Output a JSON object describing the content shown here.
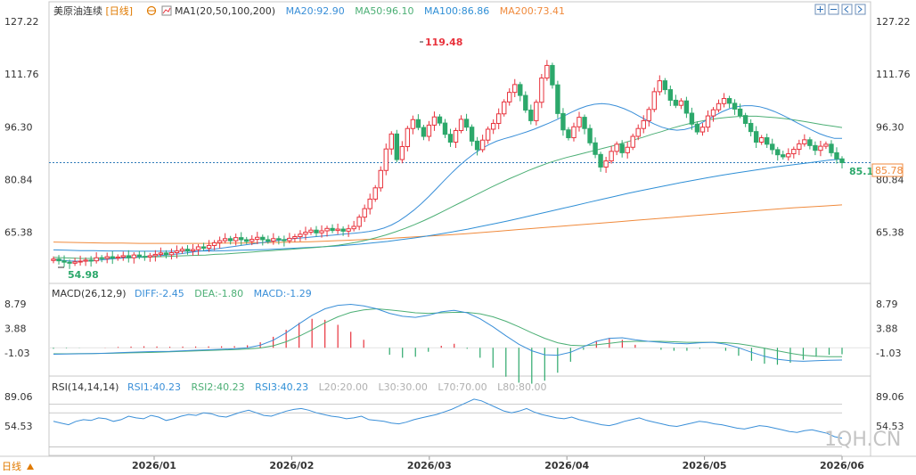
{
  "header": {
    "instrument": "美原油连续",
    "period": "[日线]",
    "ma_title": "MA1(20,50,100,200)",
    "ma20": "MA20:92.90",
    "ma50": "MA50:96.10",
    "ma100": "MA100:86.86",
    "ma200": "MA200:73.41"
  },
  "macd_header": {
    "title": "MACD(26,12,9)",
    "diff": "DIFF:-2.45",
    "dea": "DEA:-1.80",
    "macd": "MACD:-1.29"
  },
  "rsi_header": {
    "title": "RSI(14,14,14)",
    "rsi1": "RSI1:40.23",
    "rsi2": "RSI2:40.23",
    "rsi3": "RSI3:40.23",
    "l20": "L20:20.00",
    "l30": "L30:30.00",
    "l70": "L70:70.00",
    "l80": "L80:80.00"
  },
  "footer": {
    "period_button": "日线",
    "watermark": "1QH.CN"
  },
  "icons": [
    "lock-icon",
    "zoom-in-icon",
    "zoom-out-icon",
    "scroll-left-icon",
    "scroll-right-icon"
  ],
  "colors": {
    "up": "#e8323c",
    "down": "#2ca86b",
    "ma20": "#3a8fd8",
    "ma50": "#4caf75",
    "ma100": "#2f8fd6",
    "ma200": "#f08a3c",
    "diff": "#3a8fd8",
    "dea": "#4caf75",
    "rsi": "#3a8fd8",
    "price_line": "#2e7ab8"
  },
  "chart_data": {
    "type": "candlestick",
    "x_labels": [
      "2026/01",
      "2026/02",
      "2026/03",
      "2026/04",
      "2026/05",
      "2026/06"
    ],
    "price_axis": {
      "ticks": [
        "127.22",
        "111.76",
        "96.30",
        "80.84",
        "65.38"
      ],
      "ylim": [
        50,
        130
      ]
    },
    "macd_axis": {
      "ticks": [
        "8.79",
        "3.88",
        "-1.03"
      ]
    },
    "rsi_axis": {
      "ticks": [
        "89.06",
        "54.53"
      ]
    },
    "annotations": {
      "high": "119.48",
      "low": "54.98",
      "last": "85.1",
      "current": "85.78"
    },
    "grid": false,
    "closes": [
      57.5,
      57,
      56.6,
      56.3,
      56.7,
      56.9,
      57.2,
      57,
      57.9,
      57.7,
      58.2,
      57.8,
      58.1,
      58.5,
      57.9,
      58.7,
      58.3,
      58.1,
      58.5,
      58.9,
      59.3,
      58.8,
      59.4,
      59.9,
      60.4,
      59.9,
      60.3,
      61.1,
      60.7,
      61.5,
      62.3,
      62.9,
      63.5,
      62.9,
      63.8,
      63.2,
      62.7,
      63.3,
      63.9,
      63.2,
      62.8,
      63.5,
      63.2,
      62.9,
      63.6,
      64.1,
      64.8,
      65.4,
      66,
      65.2,
      65.8,
      66.5,
      65.9,
      66.3,
      65.7,
      66.4,
      67.1,
      69.8,
      72.3,
      75.1,
      78.4,
      83.5,
      89.8,
      94.2,
      86.7,
      90.5,
      95.8,
      98.4,
      96.1,
      93.5,
      96.8,
      99.2,
      97.4,
      94.1,
      91.8,
      95.2,
      98.5,
      96.2,
      92.1,
      89.6,
      92.4,
      95.6,
      97.3,
      100.1,
      103.6,
      106.4,
      108.7,
      105.5,
      101.2,
      98.1,
      103.5,
      110.6,
      114.3,
      108.6,
      100.2,
      95.4,
      93.1,
      96.3,
      99.1,
      95.8,
      91.6,
      88.2,
      84.5,
      86.3,
      89.1,
      91.2,
      88.7,
      90.3,
      93.5,
      95.8,
      98.1,
      101.4,
      106.6,
      109.8,
      107.2,
      104.1,
      102.6,
      103.9,
      100.3,
      97.1,
      94.8,
      96.2,
      99.5,
      101.3,
      103.1,
      104.6,
      103.2,
      101.5,
      99.6,
      97.3,
      94.9,
      91.8,
      93.1,
      91.2,
      89.6,
      88.1,
      87.5,
      88.4,
      89.7,
      91.3,
      92.5,
      90.8,
      89.4,
      90.6,
      91.2,
      88.7,
      86.9,
      85.78
    ],
    "series": [
      {
        "name": "MA20",
        "values": [
          57.4,
          57.2,
          57,
          56.9,
          56.9,
          57,
          57.2,
          57.4,
          57.6,
          57.8,
          58,
          58.1,
          58.2,
          58.4,
          58.5,
          58.7,
          58.9,
          59.1,
          59.4,
          59.7,
          60,
          60.3,
          60.6,
          60.9,
          61.2,
          61.5,
          61.8,
          62.1,
          62.4,
          62.7,
          63,
          63.3,
          63.5,
          63.7,
          63.9,
          64.1,
          64.3,
          64.5,
          64.7,
          64.9,
          65.1,
          65.3,
          65.6,
          66,
          66.6,
          67.5,
          68.7,
          70.2,
          71.9,
          73.8,
          75.9,
          78.2,
          80.5,
          82.7,
          84.8,
          86.7,
          88.4,
          89.9,
          91.1,
          92.1,
          92.8,
          93.4,
          94.1,
          94.8,
          95.6,
          96.5,
          97.4,
          98.4,
          99.5,
          100.6,
          101.6,
          102.4,
          102.9,
          103.1,
          102.9,
          102.4,
          101.6,
          100.6,
          99.4,
          98.2,
          97.1,
          96.2,
          95.6,
          95.3,
          95.5,
          96.1,
          97.1,
          98.3,
          99.5,
          100.7,
          101.6,
          102.2,
          102.5,
          102.5,
          102.2,
          101.6,
          100.8,
          99.8,
          98.7,
          97.5,
          96.4,
          95.3,
          94.3,
          93.5,
          92.9,
          92.9
        ]
      },
      {
        "name": "MA50",
        "values": [
          58,
          57.9,
          57.8,
          57.7,
          57.7,
          57.7,
          57.8,
          57.8,
          57.9,
          58,
          58.1,
          58.2,
          58.3,
          58.4,
          58.5,
          58.6,
          58.7,
          58.9,
          59,
          59.2,
          59.4,
          59.6,
          59.8,
          60,
          60.2,
          60.4,
          60.6,
          60.8,
          61,
          61.3,
          61.6,
          62,
          62.5,
          63.1,
          63.8,
          64.6,
          65.5,
          66.5,
          67.6,
          68.8,
          70.1,
          71.5,
          72.9,
          74.3,
          75.7,
          77.1,
          78.5,
          79.8,
          81.1,
          82.3,
          83.5,
          84.6,
          85.6,
          86.5,
          87.3,
          88,
          88.7,
          89.4,
          90.1,
          90.8,
          91.6,
          92.4,
          93.2,
          94.1,
          94.9,
          95.8,
          96.6,
          97.3,
          97.9,
          98.4,
          98.8,
          99.1,
          99.3,
          99.4,
          99.4,
          99.2,
          99,
          98.7,
          98.3,
          97.9,
          97.4,
          96.9,
          96.5,
          96.1
        ]
      },
      {
        "name": "MA100",
        "values": [
          60.2,
          60.1,
          60,
          60,
          59.9,
          59.9,
          59.8,
          59.8,
          59.8,
          59.8,
          59.8,
          59.9,
          59.9,
          60,
          60.1,
          60.2,
          60.3,
          60.5,
          60.7,
          60.9,
          61.1,
          61.3,
          61.6,
          61.9,
          62.3,
          62.7,
          63.2,
          63.7,
          64.3,
          64.9,
          65.6,
          66.3,
          67.1,
          67.9,
          68.7,
          69.6,
          70.5,
          71.4,
          72.3,
          73.2,
          74.1,
          75,
          75.9,
          76.8,
          77.6,
          78.4,
          79.2,
          80,
          80.7,
          81.4,
          82.1,
          82.7,
          83.3,
          83.9,
          84.5,
          85,
          85.5,
          86,
          86.5,
          86.86
        ]
      },
      {
        "name": "MA200",
        "values": [
          62.5,
          62.4,
          62.3,
          62.2,
          62.2,
          62.1,
          62.1,
          62.1,
          62.1,
          62.1,
          62.2,
          62.2,
          62.3,
          62.4,
          62.5,
          62.6,
          62.8,
          63,
          63.2,
          63.4,
          63.7,
          64,
          64.3,
          64.6,
          64.9,
          65.3,
          65.7,
          66.1,
          66.5,
          66.9,
          67.3,
          67.7,
          68.1,
          68.5,
          68.9,
          69.3,
          69.7,
          70.1,
          70.5,
          70.9,
          71.3,
          71.7,
          72.1,
          72.5,
          72.8,
          73.1,
          73.41
        ]
      },
      {
        "name": "DIFF",
        "values": [
          -1.3,
          -1.25,
          -1.2,
          -1.15,
          -1.1,
          -1,
          -0.9,
          -0.8,
          -0.75,
          -0.7,
          -0.6,
          -0.5,
          -0.4,
          -0.3,
          -0.2,
          0,
          0.5,
          1.5,
          3,
          4.8,
          6.5,
          7.8,
          8.5,
          8.7,
          8.4,
          7.8,
          6.9,
          6.3,
          6.1,
          6.5,
          7.2,
          7.5,
          7,
          5.8,
          4.2,
          2.4,
          0.7,
          -0.6,
          -1.4,
          -1.5,
          -0.9,
          0.2,
          1.3,
          1.9,
          2,
          1.6,
          1.3,
          1.1,
          0.9,
          0.8,
          1,
          1.1,
          0.7,
          0,
          -0.9,
          -1.7,
          -2.3,
          -2.6,
          -2.7,
          -2.6,
          -2.5,
          -2.45
        ]
      },
      {
        "name": "DEA",
        "values": [
          -1.2,
          -1.2,
          -1.18,
          -1.15,
          -1.12,
          -1.08,
          -1.02,
          -0.95,
          -0.88,
          -0.8,
          -0.72,
          -0.63,
          -0.54,
          -0.45,
          -0.36,
          -0.25,
          -0.05,
          0.4,
          1.2,
          2.3,
          3.6,
          5,
          6.2,
          7.1,
          7.6,
          7.8,
          7.6,
          7.3,
          7,
          6.9,
          7,
          7.1,
          7.1,
          6.8,
          6.2,
          5.3,
          4.2,
          3,
          1.9,
          1,
          0.5,
          0.4,
          0.6,
          0.9,
          1.2,
          1.3,
          1.3,
          1.3,
          1.2,
          1.1,
          1.1,
          1.1,
          1,
          0.8,
          0.4,
          -0.1,
          -0.6,
          -1.1,
          -1.5,
          -1.7,
          -1.8,
          -1.8
        ]
      },
      {
        "name": "RSI1",
        "values": [
          60,
          58,
          56,
          60,
          62,
          61,
          64,
          63,
          60,
          62,
          66,
          64,
          63,
          67,
          65,
          61,
          63,
          66,
          68,
          67,
          70,
          69,
          66,
          65,
          68,
          71,
          73,
          70,
          67,
          66,
          69,
          72,
          74,
          75,
          73,
          70,
          68,
          66,
          65,
          63,
          64,
          66,
          62,
          61,
          60,
          58,
          57,
          59,
          62,
          64,
          66,
          68,
          71,
          74,
          78,
          82,
          86,
          84,
          80,
          76,
          72,
          70,
          72,
          75,
          71,
          68,
          66,
          64,
          63,
          65,
          62,
          60,
          58,
          56,
          55,
          57,
          60,
          62,
          64,
          61,
          59,
          57,
          55,
          54,
          56,
          58,
          60,
          59,
          57,
          56,
          54,
          52,
          51,
          53,
          55,
          54,
          52,
          50,
          48,
          47,
          49,
          50,
          48,
          46,
          42,
          40.23
        ]
      }
    ]
  }
}
